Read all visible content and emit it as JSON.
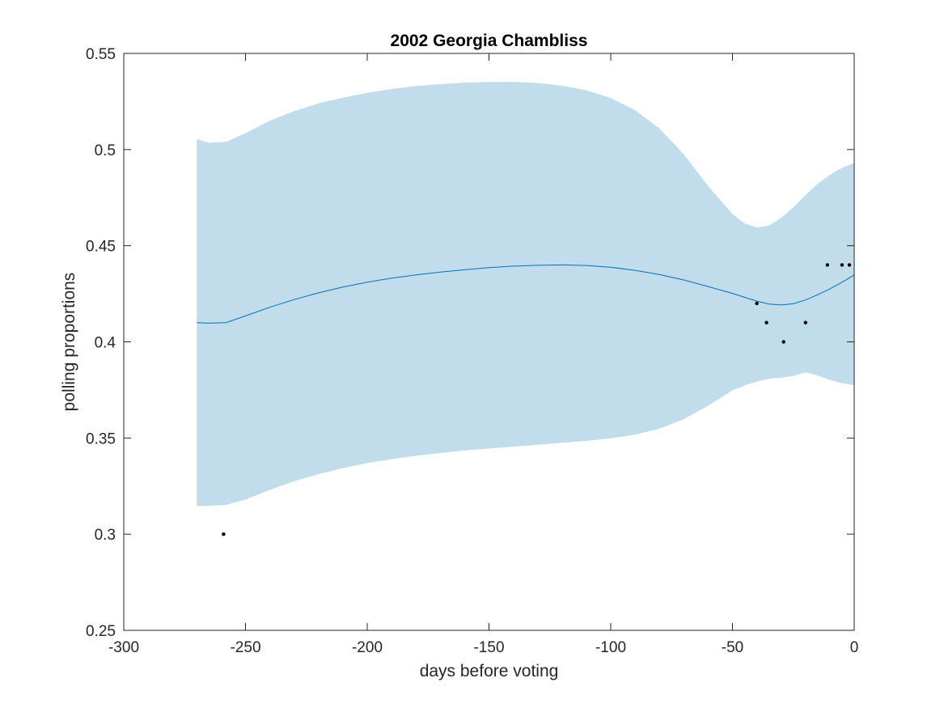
{
  "chart_data": {
    "type": "line",
    "title": "2002 Georgia Chambliss",
    "xlabel": "days before voting",
    "ylabel": "polling proportions",
    "xlim": [
      -300,
      0
    ],
    "ylim": [
      0.25,
      0.55
    ],
    "xticks": [
      -300,
      -250,
      -200,
      -150,
      -100,
      -50,
      0
    ],
    "xtick_labels": [
      "-300",
      "-250",
      "-200",
      "-150",
      "-100",
      "-50",
      "0"
    ],
    "yticks": [
      0.25,
      0.3,
      0.35,
      0.4,
      0.45,
      0.5,
      0.55
    ],
    "ytick_labels": [
      "0.25",
      "0.3",
      "0.35",
      "0.4",
      "0.45",
      "0.5",
      "0.55"
    ],
    "grid": false,
    "colors": {
      "band": "#c1dcea",
      "line": "#0072bd",
      "points": "#000000",
      "axes": "#262626"
    },
    "series": [
      {
        "name": "mean",
        "x": [
          -270,
          -265,
          -258,
          -250,
          -240,
          -230,
          -220,
          -210,
          -200,
          -190,
          -180,
          -170,
          -160,
          -150,
          -140,
          -130,
          -120,
          -110,
          -100,
          -90,
          -80,
          -70,
          -60,
          -50,
          -45,
          -40,
          -35,
          -30,
          -25,
          -20,
          -15,
          -10,
          -5,
          0
        ],
        "y": [
          0.41,
          0.4097,
          0.41,
          0.4135,
          0.418,
          0.422,
          0.4255,
          0.4285,
          0.431,
          0.4331,
          0.4348,
          0.4363,
          0.4375,
          0.4386,
          0.4394,
          0.4398,
          0.44,
          0.4397,
          0.4388,
          0.4372,
          0.435,
          0.4322,
          0.4288,
          0.4252,
          0.4232,
          0.4212,
          0.4197,
          0.4192,
          0.4198,
          0.4218,
          0.4245,
          0.4275,
          0.431,
          0.4348
        ]
      },
      {
        "name": "confidence band",
        "x": [
          -270,
          -265,
          -258,
          -250,
          -240,
          -230,
          -220,
          -210,
          -200,
          -190,
          -180,
          -170,
          -160,
          -150,
          -140,
          -130,
          -120,
          -110,
          -100,
          -90,
          -80,
          -70,
          -60,
          -50,
          -45,
          -40,
          -35,
          -30,
          -25,
          -20,
          -15,
          -10,
          -5,
          0
        ],
        "upper": [
          0.5055,
          0.5035,
          0.504,
          0.5085,
          0.515,
          0.52,
          0.524,
          0.527,
          0.5295,
          0.5315,
          0.533,
          0.534,
          0.5348,
          0.5352,
          0.5352,
          0.5346,
          0.5332,
          0.5308,
          0.5268,
          0.5205,
          0.511,
          0.4975,
          0.481,
          0.4665,
          0.4615,
          0.4595,
          0.4605,
          0.4645,
          0.47,
          0.4762,
          0.4822,
          0.4868,
          0.4905,
          0.493
        ],
        "lower": [
          0.3145,
          0.3148,
          0.3152,
          0.318,
          0.323,
          0.3275,
          0.3312,
          0.3343,
          0.337,
          0.339,
          0.3408,
          0.3422,
          0.3435,
          0.3445,
          0.3455,
          0.3465,
          0.3475,
          0.3485,
          0.3498,
          0.3518,
          0.3548,
          0.3598,
          0.3668,
          0.3748,
          0.3773,
          0.3793,
          0.3808,
          0.3813,
          0.3823,
          0.3842,
          0.3825,
          0.3802,
          0.3785,
          0.3775
        ]
      },
      {
        "name": "polls",
        "points": [
          {
            "x": -259,
            "y": 0.3
          },
          {
            "x": -40,
            "y": 0.42
          },
          {
            "x": -36,
            "y": 0.41
          },
          {
            "x": -29,
            "y": 0.4
          },
          {
            "x": -20,
            "y": 0.41
          },
          {
            "x": -11,
            "y": 0.44
          },
          {
            "x": -5,
            "y": 0.44
          },
          {
            "x": -2,
            "y": 0.44
          }
        ]
      }
    ]
  }
}
